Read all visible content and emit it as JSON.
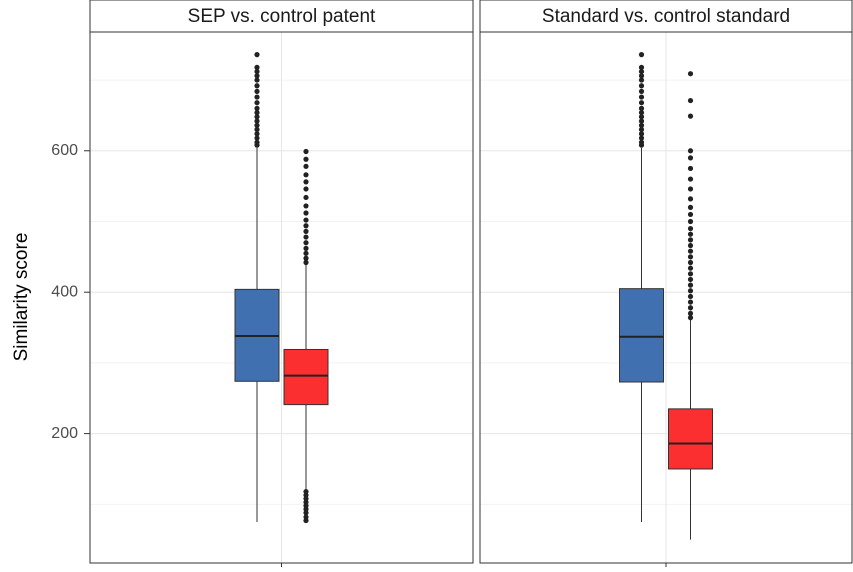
{
  "chart_data": {
    "type": "box",
    "ylabel": "Similarity score",
    "ylim": [
      17,
      768
    ],
    "yticks": [
      200,
      400,
      600
    ],
    "minor_yticks": [
      100,
      300,
      500,
      700
    ],
    "grid": true,
    "panels": [
      {
        "title": "SEP vs. control patent",
        "series": [
          {
            "color": "#4170b0",
            "whisker_low": 75,
            "q1": 274,
            "median": 338,
            "q3": 404,
            "whisker_high": 604,
            "outliers": [
              608,
              612,
              618,
              624,
              630,
              636,
              642,
              648,
              654,
              660,
              668,
              676,
              684,
              692,
              700,
              706,
              712,
              718,
              736
            ]
          },
          {
            "color": "#fb2f2f",
            "whisker_low": 121,
            "q1": 241,
            "median": 282,
            "q3": 319,
            "whisker_high": 439,
            "outliers": [
              77,
              82,
              88,
              93,
              98,
              103,
              108,
              113,
              118,
              442,
              448,
              455,
              462,
              470,
              478,
              486,
              494,
              502,
              512,
              522,
              534,
              546,
              556,
              566,
              578,
              588,
              599
            ]
          }
        ]
      },
      {
        "title": "Standard vs. control standard",
        "series": [
          {
            "color": "#4170b0",
            "whisker_low": 75,
            "q1": 273,
            "median": 337,
            "q3": 405,
            "whisker_high": 604,
            "outliers": [
              608,
              612,
              618,
              624,
              630,
              636,
              642,
              648,
              654,
              660,
              668,
              676,
              684,
              692,
              700,
              706,
              712,
              718,
              736
            ]
          },
          {
            "color": "#fb2f2f",
            "whisker_low": 50,
            "q1": 150,
            "median": 186,
            "q3": 235,
            "whisker_high": 361,
            "outliers": [
              364,
              370,
              378,
              386,
              394,
              402,
              410,
              418,
              426,
              434,
              442,
              450,
              458,
              466,
              474,
              482,
              490,
              500,
              510,
              520,
              532,
              546,
              560,
              575,
              590,
              600,
              649,
              671,
              709
            ]
          }
        ]
      }
    ]
  }
}
